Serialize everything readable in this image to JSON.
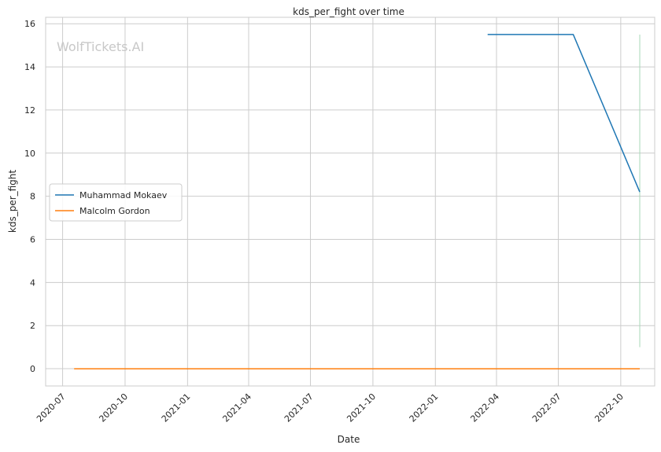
{
  "chart_data": {
    "type": "line",
    "title": "kds_per_fight over time",
    "xlabel": "Date",
    "ylabel": "kds_per_fight",
    "watermark": "WolfTickets.AI",
    "xlim": [
      "2020-06-06",
      "2022-11-20"
    ],
    "ylim": [
      -0.8,
      16.3
    ],
    "x_ticks": [
      "2020-07",
      "2020-10",
      "2021-01",
      "2021-04",
      "2021-07",
      "2021-10",
      "2022-01",
      "2022-04",
      "2022-07",
      "2022-10"
    ],
    "y_ticks": [
      0,
      2,
      4,
      6,
      8,
      10,
      12,
      14,
      16
    ],
    "grid": true,
    "legend_position": "center-left",
    "series": [
      {
        "name": "Muhammad Mokaev",
        "color": "#1f77b4",
        "points": [
          {
            "x": "2022-03-19",
            "y": 15.5
          },
          {
            "x": "2022-07-23",
            "y": 15.5
          },
          {
            "x": "2022-10-29",
            "y": 8.2
          }
        ]
      },
      {
        "name": "Malcolm Gordon",
        "color": "#ff7f0e",
        "points": [
          {
            "x": "2020-07-18",
            "y": 0
          },
          {
            "x": "2022-10-29",
            "y": 0
          }
        ]
      }
    ],
    "annotation_line": {
      "x": "2022-10-29",
      "y_range": [
        1.0,
        15.5
      ],
      "color": "#a8d8b8"
    }
  }
}
